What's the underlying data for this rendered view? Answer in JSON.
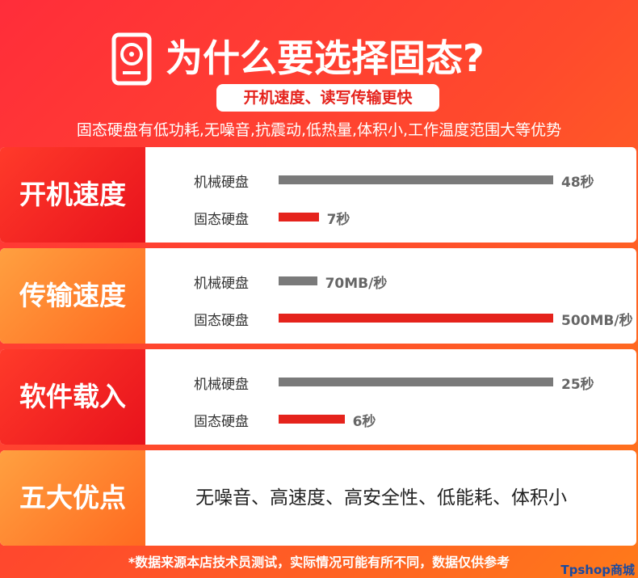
{
  "header": {
    "title": "为什么要选择固态?",
    "badge": "开机速度、读写传输更快",
    "subtitle": "固态硬盘有低功耗,无噪音,抗震动,低热量,体积小,工作温度范围大等优势"
  },
  "sections": [
    {
      "label": "开机速度",
      "categories": [
        "机械硬盘",
        "固态硬盘"
      ],
      "values": [
        48,
        7
      ],
      "value_labels": [
        "48秒",
        "7秒"
      ],
      "colors": [
        "#7a7a7a",
        "#e5231c"
      ]
    },
    {
      "label": "传输速度",
      "categories": [
        "机械硬盘",
        "固态硬盘"
      ],
      "values": [
        70,
        500
      ],
      "value_labels": [
        "70MB/秒",
        "500MB/秒"
      ],
      "colors": [
        "#7a7a7a",
        "#e5231c"
      ]
    },
    {
      "label": "软件载入",
      "categories": [
        "机械硬盘",
        "固态硬盘"
      ],
      "values": [
        25,
        6
      ],
      "value_labels": [
        "25秒",
        "6秒"
      ],
      "colors": [
        "#7a7a7a",
        "#e5231c"
      ]
    },
    {
      "label": "五大优点",
      "text": "无噪音、高速度、高安全性、低能耗、体积小"
    }
  ],
  "footer": "*数据来源本店技术员测试，实际情况可能有所不同，数据仅供参考",
  "watermark": "Tpshop商城"
}
